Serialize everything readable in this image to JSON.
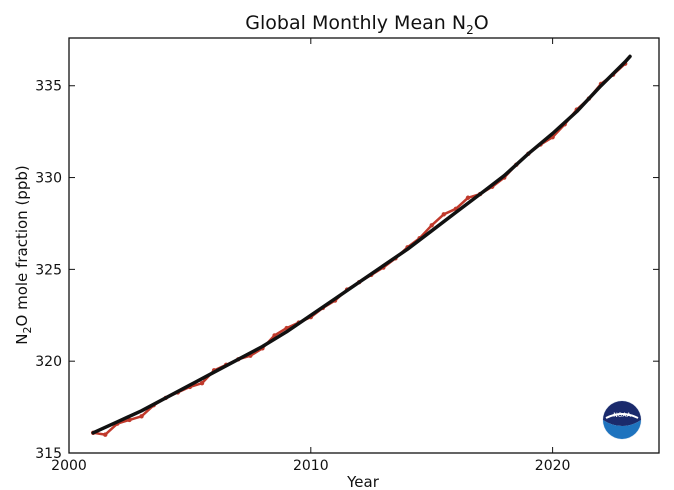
{
  "chart_data": {
    "type": "line",
    "title": "Global Monthly Mean N",
    "title_subscript": "2",
    "title_suffix": "O",
    "xlabel": "Year",
    "ylabel": "N",
    "ylabel_subscript": "2",
    "ylabel_suffix": "O mole fraction (ppb)",
    "xlim": [
      2000,
      2024.4
    ],
    "ylim": [
      315,
      337.6
    ],
    "x_ticks": [
      2000,
      2010,
      2020
    ],
    "x_tick_labels": [
      "2000",
      "2010",
      "2020"
    ],
    "y_ticks": [
      315,
      320,
      325,
      330,
      335
    ],
    "y_tick_labels": [
      "315",
      "320",
      "325",
      "330",
      "335"
    ],
    "grid": false,
    "legend": "none",
    "series": [
      {
        "style": "monthly-mean",
        "color": "#c0392b",
        "x": [
          2001.0,
          2001.5,
          2002.0,
          2002.5,
          2003.0,
          2003.5,
          2004.0,
          2004.5,
          2005.0,
          2005.5,
          2006.0,
          2006.5,
          2007.0,
          2007.5,
          2008.0,
          2008.5,
          2009.0,
          2009.5,
          2010.0,
          2010.5,
          2011.0,
          2011.5,
          2012.0,
          2012.5,
          2013.0,
          2013.5,
          2014.0,
          2014.5,
          2015.0,
          2015.5,
          2016.0,
          2016.5,
          2017.0,
          2017.5,
          2018.0,
          2018.5,
          2019.0,
          2019.5,
          2020.0,
          2020.5,
          2021.0,
          2021.5,
          2022.0,
          2022.5,
          2023.0
        ],
        "values": [
          316.1,
          316.0,
          316.6,
          316.8,
          317.0,
          317.6,
          318.0,
          318.3,
          318.6,
          318.8,
          319.5,
          319.8,
          320.1,
          320.3,
          320.7,
          321.4,
          321.8,
          322.1,
          322.4,
          322.9,
          323.3,
          323.9,
          324.3,
          324.7,
          325.1,
          325.6,
          326.2,
          326.7,
          327.4,
          328.0,
          328.3,
          328.9,
          329.1,
          329.5,
          330.0,
          330.7,
          331.3,
          331.8,
          332.2,
          332.9,
          333.7,
          334.3,
          335.1,
          335.6,
          336.2
        ]
      },
      {
        "style": "trend",
        "color": "#111111",
        "x": [
          2001.0,
          2002.0,
          2003.0,
          2004.0,
          2005.0,
          2006.0,
          2007.0,
          2008.0,
          2009.0,
          2010.0,
          2011.0,
          2012.0,
          2013.0,
          2014.0,
          2015.0,
          2016.0,
          2017.0,
          2018.0,
          2019.0,
          2020.0,
          2021.0,
          2022.0,
          2023.0,
          2023.2
        ],
        "values": [
          316.1,
          316.7,
          317.3,
          318.0,
          318.7,
          319.4,
          320.1,
          320.8,
          321.6,
          322.5,
          323.4,
          324.3,
          325.2,
          326.1,
          327.1,
          328.1,
          329.1,
          330.1,
          331.3,
          332.4,
          333.6,
          335.0,
          336.3,
          336.6
        ]
      }
    ]
  },
  "logo": {
    "name": "noaa-logo",
    "text": "NOAA",
    "colors": {
      "top": "#1a2a6c",
      "bottom": "#1e73be"
    }
  }
}
